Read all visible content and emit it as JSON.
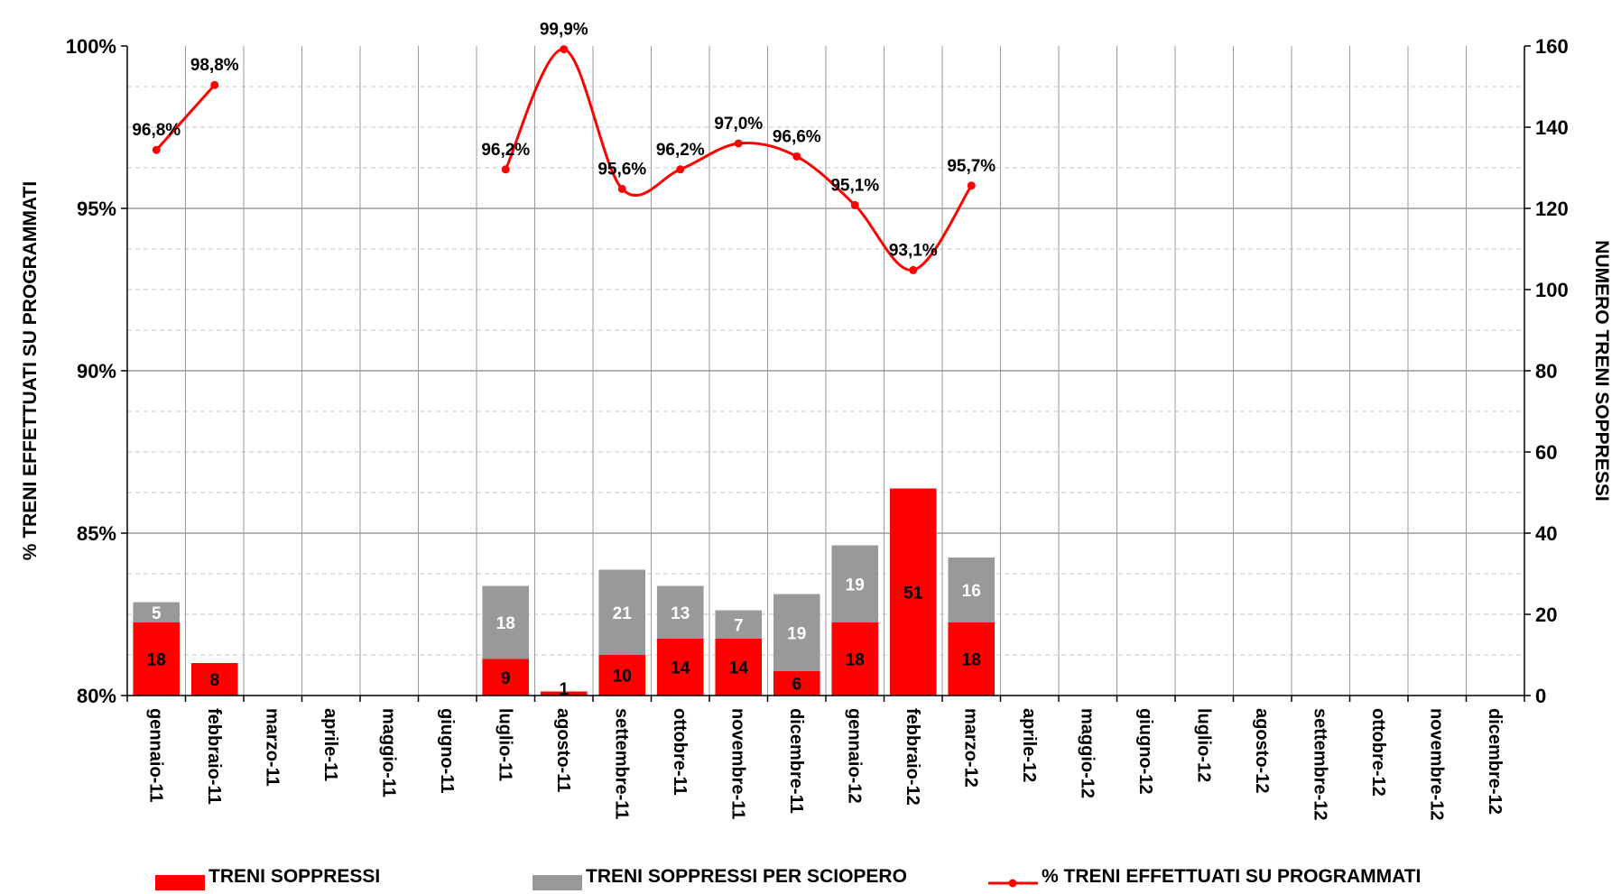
{
  "chart_data": {
    "type": "bar",
    "categories": [
      "gennaio-11",
      "febbraio-11",
      "marzo-11",
      "aprile-11",
      "maggio-11",
      "giugno-11",
      "luglio-11",
      "agosto-11",
      "settembre-11",
      "ottobre-11",
      "novembre-11",
      "dicembre-11",
      "gennaio-12",
      "febbraio-12",
      "marzo-12",
      "aprile-12",
      "maggio-12",
      "giugno-12",
      "luglio-12",
      "agosto-12",
      "settembre-12",
      "ottobre-12",
      "novembre-12",
      "dicembre-12"
    ],
    "series": [
      {
        "name": "TRENI SOPPRESSI",
        "type": "bar",
        "axis": "right",
        "color": "#ff0000",
        "label_color": "#000000",
        "values": [
          18,
          8,
          null,
          null,
          null,
          null,
          9,
          1,
          10,
          14,
          14,
          6,
          18,
          51,
          18,
          null,
          null,
          null,
          null,
          null,
          null,
          null,
          null,
          null
        ]
      },
      {
        "name": "TRENI SOPPRESSI PER SCIOPERO",
        "type": "bar",
        "axis": "right",
        "color": "#999999",
        "label_color": "#ffffff",
        "values": [
          5,
          null,
          null,
          null,
          null,
          null,
          18,
          null,
          21,
          13,
          7,
          19,
          19,
          null,
          16,
          null,
          null,
          null,
          null,
          null,
          null,
          null,
          null,
          null
        ]
      },
      {
        "name": "% TRENI EFFETTUATI SU PROGRAMMATI",
        "type": "line",
        "axis": "left",
        "color": "#ff0000",
        "smooth": true,
        "values": [
          96.8,
          98.8,
          null,
          null,
          null,
          null,
          96.2,
          99.9,
          95.6,
          96.2,
          97.0,
          96.6,
          95.1,
          93.1,
          95.7,
          null,
          null,
          null,
          null,
          null,
          null,
          null,
          null,
          null
        ],
        "labels": [
          "96,8%",
          "98,8%",
          null,
          null,
          null,
          null,
          "96,2%",
          "99,9%",
          "95,6%",
          "96,2%",
          "97,0%",
          "96,6%",
          "95,1%",
          "93,1%",
          "95,7%",
          null,
          null,
          null,
          null,
          null,
          null,
          null,
          null,
          null
        ]
      }
    ],
    "stacked": true,
    "y_left": {
      "title": "% TRENI EFFETTUATI SU PROGRAMMATI",
      "min": 80,
      "max": 100,
      "ticks": [
        {
          "v": 80,
          "label": "80%"
        },
        {
          "v": 85,
          "label": "85%"
        },
        {
          "v": 90,
          "label": "90%"
        },
        {
          "v": 95,
          "label": "95%"
        },
        {
          "v": 100,
          "label": "100%"
        }
      ]
    },
    "y_right": {
      "title": "NUMERO TRENI SOPPRESSI",
      "min": 0,
      "max": 160,
      "ticks": [
        {
          "v": 0,
          "label": "0"
        },
        {
          "v": 20,
          "label": "20"
        },
        {
          "v": 40,
          "label": "40"
        },
        {
          "v": 60,
          "label": "60"
        },
        {
          "v": 80,
          "label": "80"
        },
        {
          "v": 100,
          "label": "100"
        },
        {
          "v": 120,
          "label": "120"
        },
        {
          "v": 140,
          "label": "140"
        },
        {
          "v": 160,
          "label": "160"
        }
      ]
    },
    "grid": true,
    "legend": {
      "position": "bottom"
    }
  }
}
